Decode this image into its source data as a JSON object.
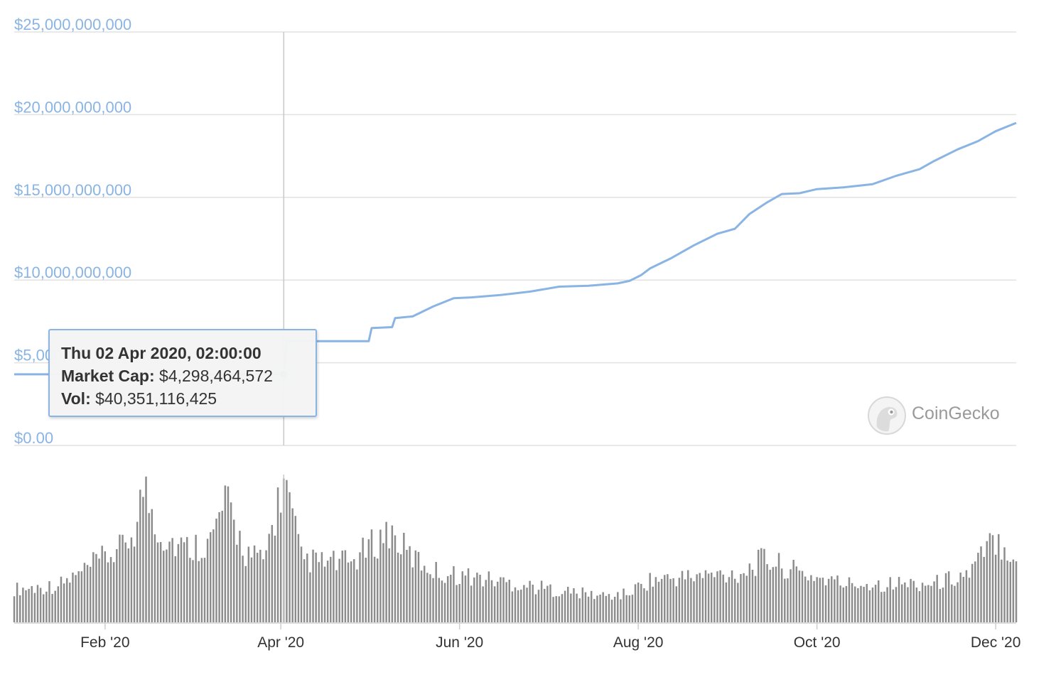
{
  "chart_data": {
    "type": "line",
    "title": "",
    "ylabel": "",
    "xlabel": "",
    "y_axis": {
      "ticks": [
        "$0.00",
        "$5,000,000,000",
        "$10,000,000,000",
        "$15,000,000,000",
        "$20,000,000,000",
        "$25,000,000,000"
      ],
      "ylim": [
        0,
        25000000000
      ]
    },
    "x_axis": {
      "ticks": [
        "Feb '20",
        "Apr '20",
        "Jun '20",
        "Aug '20",
        "Oct '20",
        "Dec '20"
      ],
      "range": [
        "2020-01-01",
        "2020-12-08"
      ]
    },
    "grid": true,
    "series": [
      {
        "metric": "market_cap",
        "color": "#8ab4e3",
        "points": [
          [
            "2020-01-01",
            4300000000
          ],
          [
            "2020-04-02",
            4298464572
          ],
          [
            "2020-04-03",
            6300000000
          ],
          [
            "2020-04-20",
            6300000000
          ],
          [
            "2020-05-01",
            6300000000
          ],
          [
            "2020-05-02",
            7100000000
          ],
          [
            "2020-05-09",
            7150000000
          ],
          [
            "2020-05-10",
            7700000000
          ],
          [
            "2020-05-16",
            7800000000
          ],
          [
            "2020-05-23",
            8400000000
          ],
          [
            "2020-05-30",
            8900000000
          ],
          [
            "2020-06-05",
            8950000000
          ],
          [
            "2020-06-15",
            9100000000
          ],
          [
            "2020-06-25",
            9300000000
          ],
          [
            "2020-07-05",
            9600000000
          ],
          [
            "2020-07-15",
            9650000000
          ],
          [
            "2020-07-25",
            9800000000
          ],
          [
            "2020-07-29",
            9950000000
          ],
          [
            "2020-08-02",
            10300000000
          ],
          [
            "2020-08-05",
            10700000000
          ],
          [
            "2020-08-12",
            11300000000
          ],
          [
            "2020-08-20",
            12100000000
          ],
          [
            "2020-08-28",
            12800000000
          ],
          [
            "2020-09-03",
            13100000000
          ],
          [
            "2020-09-08",
            14000000000
          ],
          [
            "2020-09-14",
            14700000000
          ],
          [
            "2020-09-19",
            15200000000
          ],
          [
            "2020-09-25",
            15250000000
          ],
          [
            "2020-10-01",
            15500000000
          ],
          [
            "2020-10-10",
            15600000000
          ],
          [
            "2020-10-20",
            15800000000
          ],
          [
            "2020-10-28",
            16300000000
          ],
          [
            "2020-11-05",
            16700000000
          ],
          [
            "2020-11-10",
            17200000000
          ],
          [
            "2020-11-18",
            17900000000
          ],
          [
            "2020-11-25",
            18400000000
          ],
          [
            "2020-12-01",
            19000000000
          ],
          [
            "2020-12-08",
            19500000000
          ]
        ]
      },
      {
        "metric": "volume",
        "color": "#8c8c8c",
        "points": [
          [
            "2020-01-02",
            9500000000
          ],
          [
            "2020-01-08",
            9800000000
          ],
          [
            "2020-01-16",
            10500000000
          ],
          [
            "2020-01-24",
            14000000000
          ],
          [
            "2020-01-30",
            17500000000
          ],
          [
            "2020-02-07",
            21000000000
          ],
          [
            "2020-02-12",
            28000000000
          ],
          [
            "2020-02-14",
            39000000000
          ],
          [
            "2020-02-20",
            25000000000
          ],
          [
            "2020-02-28",
            21000000000
          ],
          [
            "2020-03-08",
            23000000000
          ],
          [
            "2020-03-13",
            34000000000
          ],
          [
            "2020-03-20",
            20000000000
          ],
          [
            "2020-03-26",
            17000000000
          ],
          [
            "2020-04-02",
            40351116425
          ],
          [
            "2020-04-08",
            18000000000
          ],
          [
            "2020-04-15",
            17000000000
          ],
          [
            "2020-04-25",
            17000000000
          ],
          [
            "2020-05-08",
            26000000000
          ],
          [
            "2020-05-15",
            19000000000
          ],
          [
            "2020-05-25",
            14000000000
          ],
          [
            "2020-06-05",
            13000000000
          ],
          [
            "2020-06-20",
            11000000000
          ],
          [
            "2020-07-05",
            9000000000
          ],
          [
            "2020-07-20",
            7500000000
          ],
          [
            "2020-07-28",
            8000000000
          ],
          [
            "2020-08-05",
            12000000000
          ],
          [
            "2020-08-20",
            13000000000
          ],
          [
            "2020-09-05",
            14000000000
          ],
          [
            "2020-09-13",
            18000000000
          ],
          [
            "2020-09-25",
            14000000000
          ],
          [
            "2020-10-10",
            11000000000
          ],
          [
            "2020-10-25",
            11000000000
          ],
          [
            "2020-11-10",
            11000000000
          ],
          [
            "2020-11-22",
            14000000000
          ],
          [
            "2020-12-01",
            24000000000
          ],
          [
            "2020-12-08",
            19000000000
          ]
        ]
      }
    ],
    "tooltip": {
      "date": "Thu 02 Apr 2020, 02:00:00",
      "market_cap_label": "Market Cap:",
      "market_cap_value": "$4,298,464,572",
      "volume_label": "Vol:",
      "volume_value": "$40,351,116,425"
    },
    "watermark": {
      "text": "CoinGecko",
      "icon": "gecko-logo-icon"
    }
  }
}
